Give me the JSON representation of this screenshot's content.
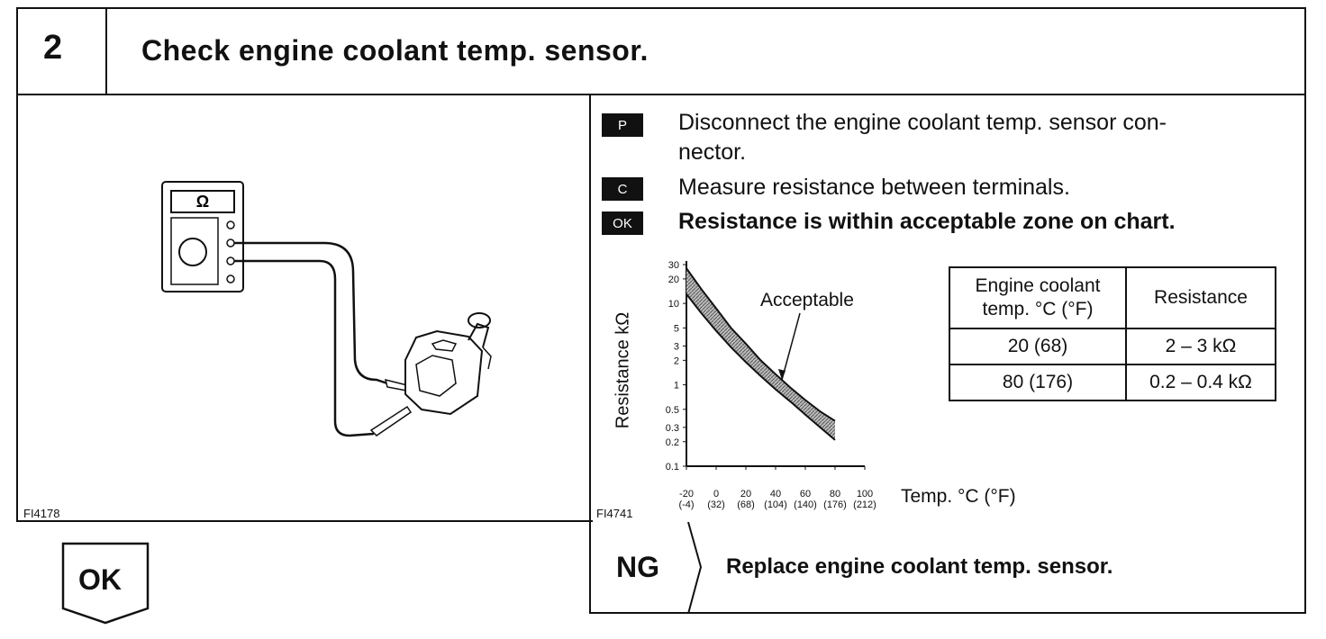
{
  "header": {
    "step_number": "2",
    "title": "Check engine coolant temp. sensor."
  },
  "figure_left": {
    "code": "FI4178",
    "meter_symbol": "Ω"
  },
  "procedure": [
    {
      "badge": "P",
      "text": "Disconnect the engine coolant temp. sensor con-",
      "text_cont": "nector."
    },
    {
      "badge": "C",
      "text": "Measure resistance between terminals."
    },
    {
      "badge": "OK",
      "text": "Resistance is within acceptable zone on chart."
    }
  ],
  "chart_data": {
    "type": "area",
    "title": "",
    "figure_code": "FI4741",
    "ylabel": "Resistance kΩ",
    "xlabel": "Temp. °C (°F)",
    "y_scale": "log",
    "ylim": [
      0.1,
      30
    ],
    "xlim": [
      -20,
      100
    ],
    "y_ticks": [
      "30",
      "20",
      "10",
      "5",
      "3",
      "2",
      "1",
      "0.5",
      "0.3",
      "0.2",
      "0.1"
    ],
    "y_tick_values": [
      30,
      20,
      10,
      5,
      3,
      2,
      1,
      0.5,
      0.3,
      0.2,
      0.1
    ],
    "x_ticks_c": [
      "-20",
      "0",
      "20",
      "40",
      "60",
      "80",
      "100"
    ],
    "x_ticks_c_values": [
      -20,
      0,
      20,
      40,
      60,
      80,
      100
    ],
    "x_ticks_f": [
      "(-4)",
      "(32)",
      "(68)",
      "(104)",
      "(140)",
      "(176)",
      "(212)"
    ],
    "annotation": "Acceptable",
    "series": [
      {
        "x": [
          -20,
          -10,
          0,
          10,
          20,
          30,
          40,
          50,
          60,
          70,
          80
        ],
        "values": [
          27,
          15,
          8.7,
          5.0,
          3.2,
          2.0,
          1.35,
          0.92,
          0.65,
          0.47,
          0.36
        ]
      },
      {
        "x": [
          -20,
          -10,
          0,
          10,
          20,
          30,
          40,
          50,
          60,
          70,
          80
        ],
        "values": [
          13,
          7.6,
          4.6,
          2.9,
          1.9,
          1.28,
          0.88,
          0.62,
          0.43,
          0.3,
          0.21
        ]
      }
    ]
  },
  "spec_table": {
    "header": {
      "temp": [
        "Engine coolant",
        "temp. °C (°F)"
      ],
      "resistance": "Resistance"
    },
    "rows": [
      {
        "temp": "20 (68)",
        "resistance": "2 – 3 kΩ"
      },
      {
        "temp": "80 (176)",
        "resistance": "0.2 – 0.4 kΩ"
      }
    ]
  },
  "results": {
    "ok_label": "OK",
    "ng_label": "NG",
    "ng_action": "Replace engine coolant temp. sensor."
  }
}
